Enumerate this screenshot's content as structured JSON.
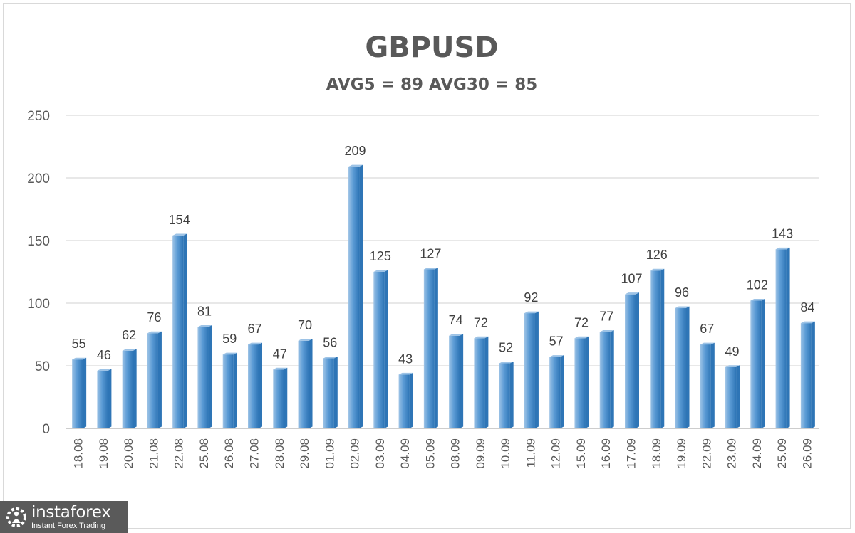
{
  "chart_data": {
    "type": "bar",
    "title": "GBPUSD",
    "subtitle": "AVG5 = 89 AVG30 = 85",
    "xlabel": "",
    "ylabel": "",
    "ylim": [
      0,
      250
    ],
    "yticks": [
      0,
      50,
      100,
      150,
      200,
      250
    ],
    "grid": true,
    "categories": [
      "18.08",
      "19.08",
      "20.08",
      "21.08",
      "22.08",
      "25.08",
      "26.08",
      "27.08",
      "28.08",
      "29.08",
      "01.09",
      "02.09",
      "03.09",
      "04.09",
      "05.09",
      "08.09",
      "09.09",
      "10.09",
      "11.09",
      "12.09",
      "15.09",
      "16.09",
      "17.09",
      "18.09",
      "19.09",
      "22.09",
      "23.09",
      "24.09",
      "25.09",
      "26.09"
    ],
    "values": [
      55,
      46,
      62,
      76,
      154,
      81,
      59,
      67,
      47,
      70,
      56,
      209,
      125,
      43,
      127,
      74,
      72,
      52,
      92,
      57,
      72,
      77,
      107,
      126,
      96,
      67,
      49,
      102,
      143,
      84
    ],
    "bar_color": "#5b9bd5",
    "bar_dark": "#2e75b6",
    "bar_light": "#9dc3e6"
  },
  "watermark": {
    "name": "instaforex",
    "tagline": "Instant Forex Trading"
  }
}
